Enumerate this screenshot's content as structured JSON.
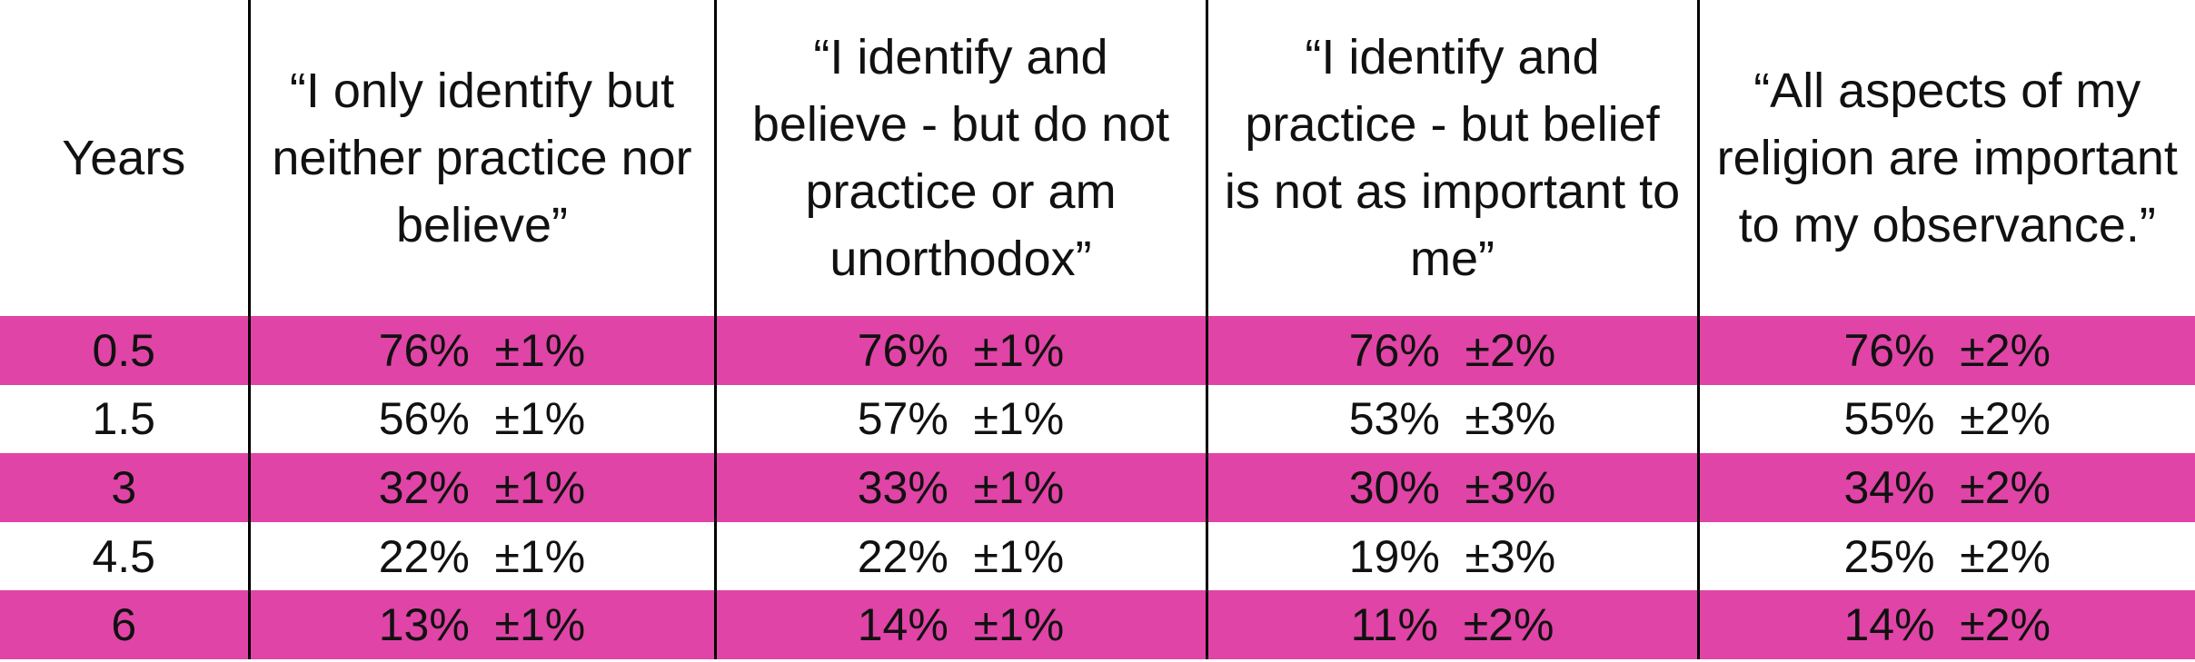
{
  "table": {
    "header": [
      "Years",
      "“I only identify but neither practice nor believe”",
      "“I identify and believe - but do not practice or am unorthodox”",
      "“I identify and practice - but belief is not as important to me”",
      "“All aspects of my religion are important to my observance.”"
    ],
    "rows": [
      [
        0.5,
        "76%  ±1%",
        "76%  ±1%",
        "76%  ±2%",
        "76%  ±2%"
      ],
      [
        1.5,
        "56%  ±1%",
        "57%  ±1%",
        "53%  ±3%",
        "55%  ±2%"
      ],
      [
        3,
        "32%  ±1%",
        "33%  ±1%",
        "30%  ±3%",
        "34%  ±2%"
      ],
      [
        4.5,
        "22%  ±1%",
        "22%  ±1%",
        "19%  ±3%",
        "25%  ±2%"
      ],
      [
        6,
        "13%  ±1%",
        "14%  ±1%",
        "11%  ±2%",
        "14%  ±2%"
      ]
    ]
  }
}
